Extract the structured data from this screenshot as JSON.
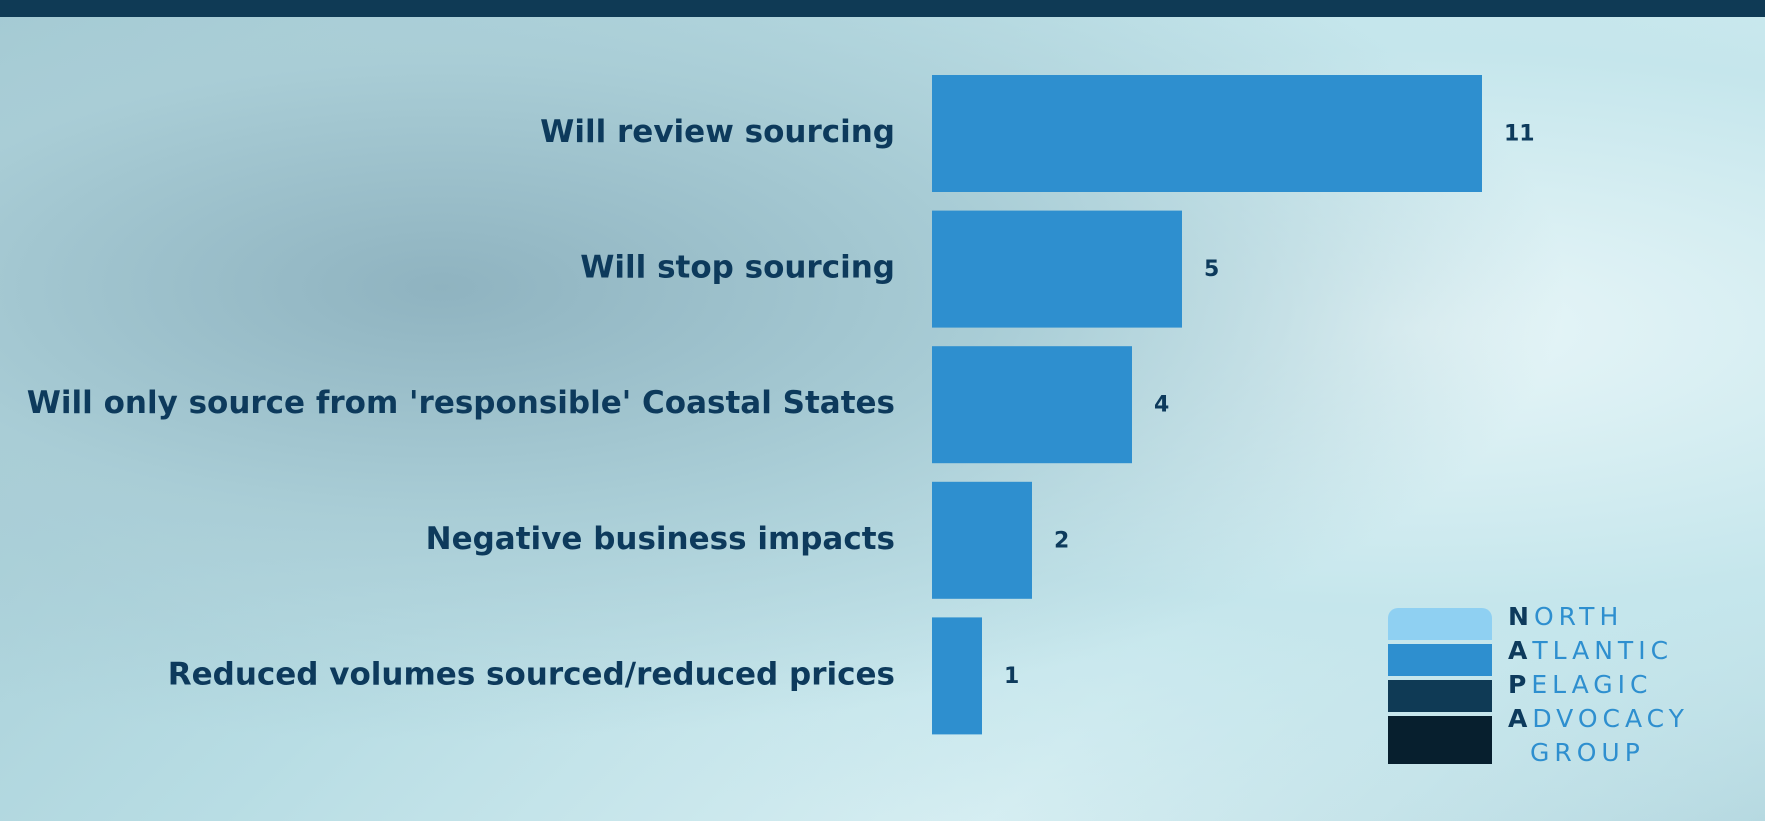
{
  "chart_data": {
    "type": "bar",
    "orientation": "horizontal",
    "categories": [
      "Will review sourcing",
      "Will stop sourcing",
      "Will only source from 'responsible' Coastal States",
      "Negative business impacts",
      "Reduced volumes sourced/reduced prices"
    ],
    "values": [
      11,
      5,
      4,
      2,
      1
    ],
    "color": "#2e8fcf"
  },
  "logo": {
    "lines": [
      "NORTH",
      "ATLANTIC",
      "PELAGIC",
      "ADVOCACY",
      "GROUP"
    ]
  }
}
